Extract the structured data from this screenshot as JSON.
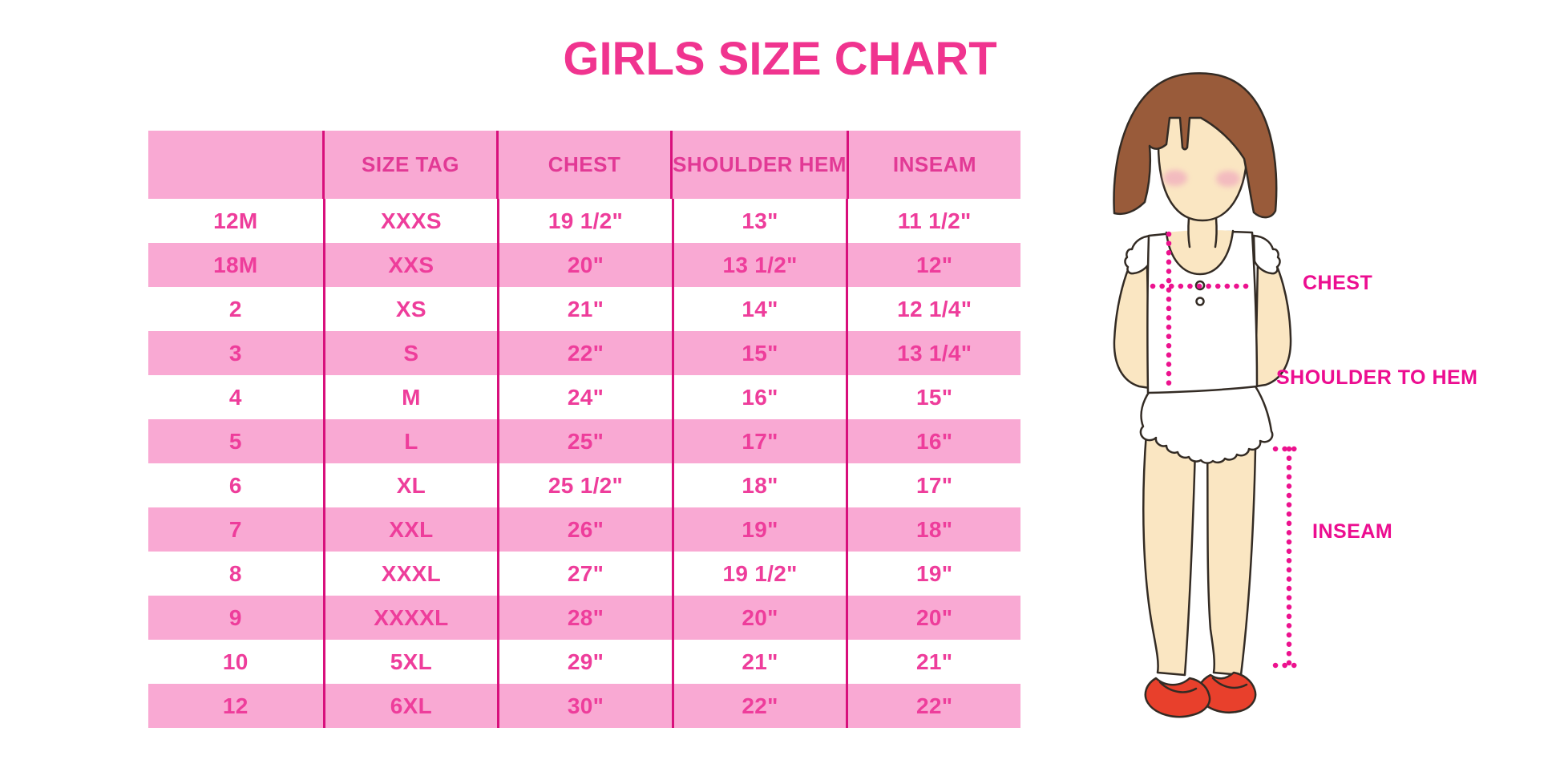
{
  "title": "GIRLS SIZE CHART",
  "colors": {
    "pink_row": "#F9A9D3",
    "divider": "#D8107C",
    "cell_text": "#EE3D9B",
    "header_text": "#E23995",
    "title_pink": "#F0348F",
    "label_magenta": "#EC0D90",
    "dotted_line": "#EC128E",
    "hair_brown": "#995B3A",
    "skin": "#FAE6C2",
    "blush": "#F0A9BE",
    "shoe_red": "#E8402C"
  },
  "chart_data": {
    "type": "table",
    "title": "GIRLS SIZE CHART",
    "columns": [
      "",
      "SIZE TAG",
      "CHEST",
      "SHOULDER HEM",
      "INSEAM"
    ],
    "rows": [
      [
        "12M",
        "XXXS",
        "19 1/2\"",
        "13\"",
        "11 1/2\""
      ],
      [
        "18M",
        "XXS",
        "20\"",
        "13 1/2\"",
        "12\""
      ],
      [
        "2",
        "XS",
        "21\"",
        "14\"",
        "12 1/4\""
      ],
      [
        "3",
        "S",
        "22\"",
        "15\"",
        "13 1/4\""
      ],
      [
        "4",
        "M",
        "24\"",
        "16\"",
        "15\""
      ],
      [
        "5",
        "L",
        "25\"",
        "17\"",
        "16\""
      ],
      [
        "6",
        "XL",
        "25 1/2\"",
        "18\"",
        "17\""
      ],
      [
        "7",
        "XXL",
        "26\"",
        "19\"",
        "18\""
      ],
      [
        "8",
        "XXXL",
        "27\"",
        "19 1/2\"",
        "19\""
      ],
      [
        "9",
        "XXXXL",
        "28\"",
        "20\"",
        "20\""
      ],
      [
        "10",
        "5XL",
        "29\"",
        "21\"",
        "21\""
      ],
      [
        "12",
        "6XL",
        "30\"",
        "22\"",
        "22\""
      ]
    ],
    "layout": {
      "alternating_rows": true,
      "header_background": "pink",
      "grid": "vertical-dividers-only"
    }
  },
  "figure": {
    "description_labels": {
      "chest": "CHEST",
      "shoulder_to_hem": "SHOULDER TO HEM",
      "inseam": "INSEAM"
    }
  }
}
